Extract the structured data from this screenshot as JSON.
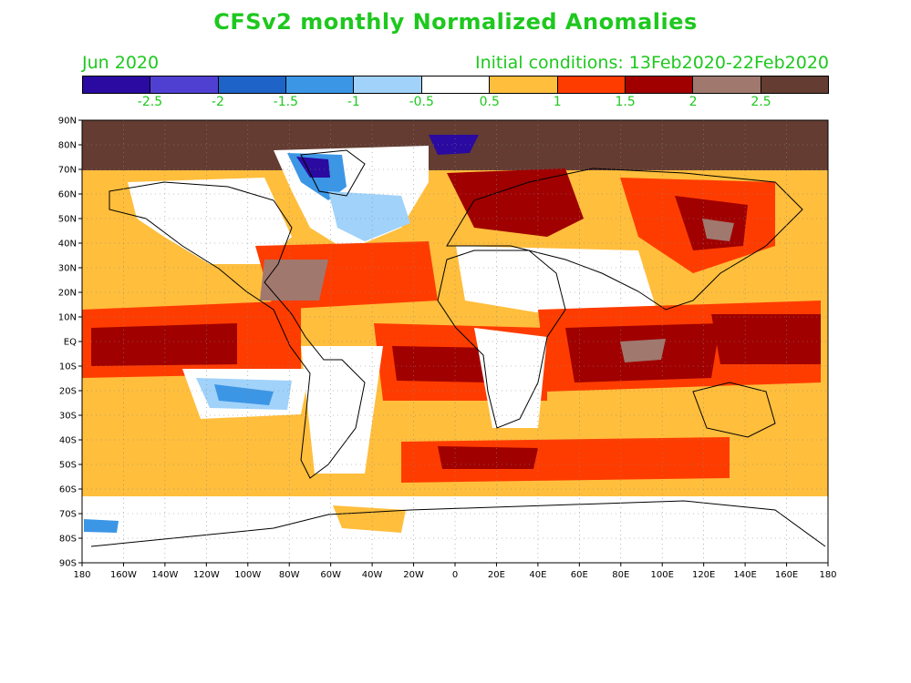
{
  "title": "CFSv2 monthly Normalized Anomalies",
  "subtitle_left": "Jun 2020",
  "subtitle_right": "Initial conditions: 13Feb2020-22Feb2020",
  "legend": {
    "colors": [
      "#2a0aa0",
      "#5040d2",
      "#1e64c8",
      "#3c96e6",
      "#a0d2fa",
      "#ffffff",
      "#ffbe3c",
      "#ff3c00",
      "#a00000",
      "#a0786e",
      "#643c32"
    ],
    "labels": [
      "-2.5",
      "-2",
      "-1.5",
      "-1",
      "-0.5",
      "0.5",
      "1",
      "1.5",
      "2",
      "2.5"
    ]
  },
  "axes": {
    "lat_labels": [
      "90N",
      "80N",
      "70N",
      "60N",
      "50N",
      "40N",
      "30N",
      "20N",
      "10N",
      "EQ",
      "10S",
      "20S",
      "30S",
      "40S",
      "50S",
      "60S",
      "70S",
      "80S",
      "90S"
    ],
    "lon_labels": [
      "180",
      "160W",
      "140W",
      "120W",
      "100W",
      "80W",
      "60W",
      "40W",
      "20W",
      "0",
      "20E",
      "40E",
      "60E",
      "80E",
      "100E",
      "120E",
      "140E",
      "160E",
      "180"
    ]
  }
}
